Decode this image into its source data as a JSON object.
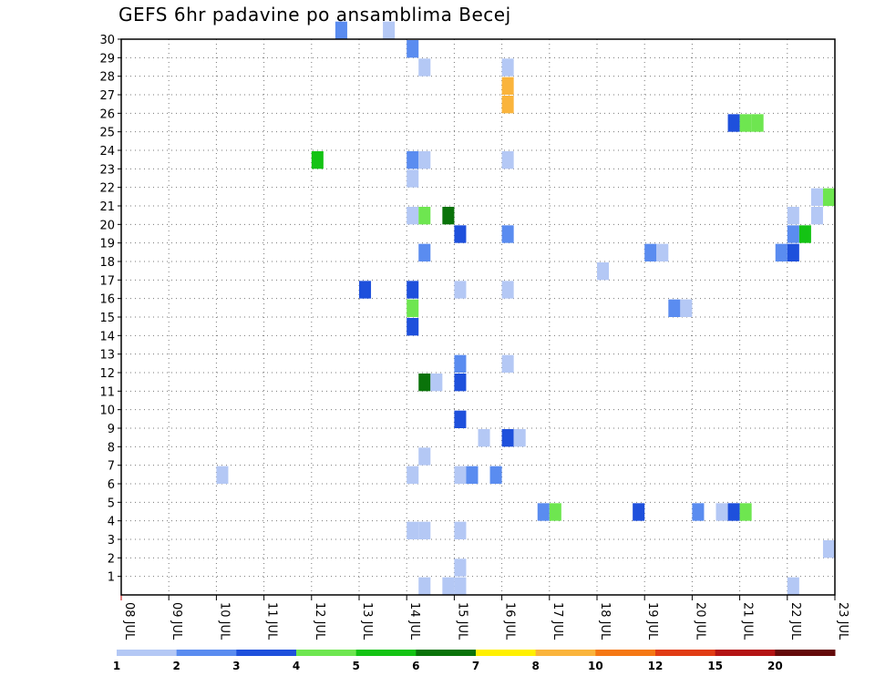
{
  "chart_data": {
    "type": "heatmap",
    "title": "GEFS 6hr padavine po ansamblima Becej",
    "xlabel": "",
    "ylabel": "",
    "x_ticks": [
      "08 JUL",
      "09 JUL",
      "10 JUL",
      "11 JUL",
      "12 JUL",
      "13 JUL",
      "14 JUL",
      "15 JUL",
      "16 JUL",
      "17 JUL",
      "18 JUL",
      "19 JUL",
      "20 JUL",
      "21 JUL",
      "22 JUL",
      "23 JUL"
    ],
    "y_ticks": [
      1,
      2,
      3,
      4,
      5,
      6,
      7,
      8,
      9,
      10,
      11,
      12,
      13,
      14,
      15,
      16,
      17,
      18,
      19,
      20,
      21,
      22,
      23,
      24,
      25,
      26,
      27,
      28,
      29,
      30
    ],
    "xlim_days": [
      0,
      15
    ],
    "ylim": [
      0,
      30
    ],
    "grid": true,
    "colorbar": {
      "labels": [
        "1",
        "2",
        "3",
        "4",
        "5",
        "6",
        "7",
        "8",
        "10",
        "12",
        "15",
        "20"
      ],
      "colors": [
        "#b4c8f5",
        "#5a8cf0",
        "#1e50dc",
        "#6ee650",
        "#14c314",
        "#0a730a",
        "#fff000",
        "#fab43c",
        "#f57814",
        "#e13c14",
        "#b41414",
        "#640a0a"
      ]
    },
    "cells": [
      {
        "member": 30,
        "step": 18,
        "value": 2.5
      },
      {
        "member": 30,
        "step": 22,
        "value": 1.5
      },
      {
        "member": 29,
        "step": 24,
        "value": 2.5
      },
      {
        "member": 28,
        "step": 25,
        "value": 1.5
      },
      {
        "member": 28,
        "step": 32,
        "value": 1.5
      },
      {
        "member": 27,
        "step": 32,
        "value": 9
      },
      {
        "member": 26,
        "step": 32,
        "value": 9
      },
      {
        "member": 25,
        "step": 51,
        "value": 3.5
      },
      {
        "member": 25,
        "step": 52,
        "value": 4.5
      },
      {
        "member": 25,
        "step": 53,
        "value": 4.5
      },
      {
        "member": 23,
        "step": 16,
        "value": 5.5
      },
      {
        "member": 23,
        "step": 24,
        "value": 2.5
      },
      {
        "member": 23,
        "step": 25,
        "value": 1.5
      },
      {
        "member": 23,
        "step": 32,
        "value": 1.5
      },
      {
        "member": 22,
        "step": 24,
        "value": 1.5
      },
      {
        "member": 22,
        "step": 60,
        "value": 2.5
      },
      {
        "member": 21,
        "step": 58,
        "value": 1.5
      },
      {
        "member": 21,
        "step": 59,
        "value": 4.5
      },
      {
        "member": 20,
        "step": 24,
        "value": 1.5
      },
      {
        "member": 20,
        "step": 25,
        "value": 4.5
      },
      {
        "member": 20,
        "step": 27,
        "value": 6.5
      },
      {
        "member": 20,
        "step": 56,
        "value": 1.5
      },
      {
        "member": 20,
        "step": 58,
        "value": 1.5
      },
      {
        "member": 19,
        "step": 28,
        "value": 3.5
      },
      {
        "member": 19,
        "step": 32,
        "value": 2.5
      },
      {
        "member": 19,
        "step": 56,
        "value": 2.5
      },
      {
        "member": 19,
        "step": 57,
        "value": 5.5
      },
      {
        "member": 18,
        "step": 25,
        "value": 2.5
      },
      {
        "member": 18,
        "step": 44,
        "value": 2.5
      },
      {
        "member": 18,
        "step": 45,
        "value": 1.5
      },
      {
        "member": 18,
        "step": 55,
        "value": 2.5
      },
      {
        "member": 18,
        "step": 56,
        "value": 3.5
      },
      {
        "member": 17,
        "step": 40,
        "value": 1.5
      },
      {
        "member": 16,
        "step": 20,
        "value": 3.5
      },
      {
        "member": 16,
        "step": 24,
        "value": 3.5
      },
      {
        "member": 16,
        "step": 28,
        "value": 1.5
      },
      {
        "member": 16,
        "step": 32,
        "value": 1.5
      },
      {
        "member": 16,
        "step": 60,
        "value": 1.5
      },
      {
        "member": 15,
        "step": 24,
        "value": 4.5
      },
      {
        "member": 15,
        "step": 46,
        "value": 2.5
      },
      {
        "member": 15,
        "step": 47,
        "value": 1.5
      },
      {
        "member": 14,
        "step": 24,
        "value": 3.5
      },
      {
        "member": 12,
        "step": 28,
        "value": 2.5
      },
      {
        "member": 12,
        "step": 32,
        "value": 1.5
      },
      {
        "member": 11,
        "step": 25,
        "value": 6.5
      },
      {
        "member": 11,
        "step": 26,
        "value": 1.5
      },
      {
        "member": 11,
        "step": 28,
        "value": 3.5
      },
      {
        "member": 9,
        "step": 28,
        "value": 3.5
      },
      {
        "member": 8,
        "step": 30,
        "value": 1.5
      },
      {
        "member": 8,
        "step": 32,
        "value": 3.5
      },
      {
        "member": 8,
        "step": 33,
        "value": 1.5
      },
      {
        "member": 7,
        "step": 25,
        "value": 1.5
      },
      {
        "member": 6,
        "step": 8,
        "value": 1.5
      },
      {
        "member": 6,
        "step": 24,
        "value": 1.5
      },
      {
        "member": 6,
        "step": 28,
        "value": 1.5
      },
      {
        "member": 6,
        "step": 29,
        "value": 2.5
      },
      {
        "member": 6,
        "step": 31,
        "value": 2.5
      },
      {
        "member": 4,
        "step": 35,
        "value": 2.5
      },
      {
        "member": 4,
        "step": 36,
        "value": 4.5
      },
      {
        "member": 4,
        "step": 43,
        "value": 3.5
      },
      {
        "member": 4,
        "step": 48,
        "value": 2.5
      },
      {
        "member": 4,
        "step": 50,
        "value": 1.5
      },
      {
        "member": 4,
        "step": 51,
        "value": 3.5
      },
      {
        "member": 4,
        "step": 52,
        "value": 4.5
      },
      {
        "member": 3,
        "step": 24,
        "value": 1.5
      },
      {
        "member": 3,
        "step": 25,
        "value": 1.5
      },
      {
        "member": 3,
        "step": 28,
        "value": 1.5
      },
      {
        "member": 3,
        "step": 60,
        "value": 2.5
      },
      {
        "member": 2,
        "step": 59,
        "value": 1.5
      },
      {
        "member": 1,
        "step": 28,
        "value": 1.5
      },
      {
        "member": 0,
        "step": 25,
        "value": 1.5
      },
      {
        "member": 0,
        "step": 27,
        "value": 1.5
      },
      {
        "member": 0,
        "step": 28,
        "value": 1.5
      },
      {
        "member": 0,
        "step": 56,
        "value": 1.5
      }
    ]
  }
}
